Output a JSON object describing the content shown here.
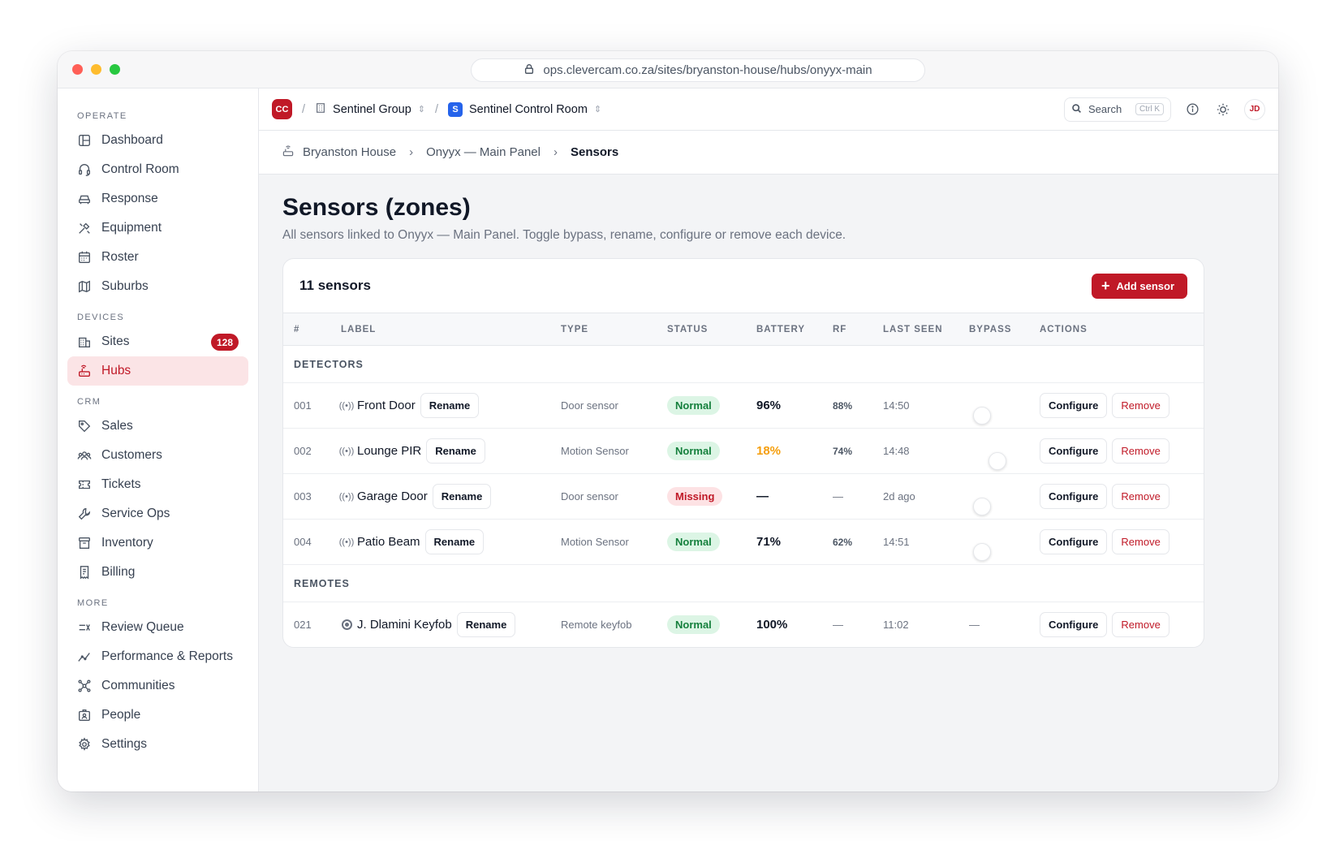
{
  "browser": {
    "url": "ops.clevercam.co.za/sites/bryanston-house/hubs/onyyx-main"
  },
  "sidebar": {
    "sections": [
      {
        "label": "OPERATE",
        "items": [
          {
            "label": "Dashboard",
            "icon": "layout-icon"
          },
          {
            "label": "Control Room",
            "icon": "headset-icon"
          },
          {
            "label": "Response",
            "icon": "car-icon"
          },
          {
            "label": "Equipment",
            "icon": "tools-icon"
          },
          {
            "label": "Roster",
            "icon": "calendar-icon"
          },
          {
            "label": "Suburbs",
            "icon": "map-icon"
          }
        ]
      },
      {
        "label": "DEVICES",
        "items": [
          {
            "label": "Sites",
            "icon": "building-icon",
            "badge": "128"
          },
          {
            "label": "Hubs",
            "icon": "router-icon",
            "active": true
          }
        ]
      },
      {
        "label": "CRM",
        "items": [
          {
            "label": "Sales",
            "icon": "tag-icon"
          },
          {
            "label": "Customers",
            "icon": "users-icon"
          },
          {
            "label": "Tickets",
            "icon": "ticket-icon"
          },
          {
            "label": "Service Ops",
            "icon": "wrench-icon"
          },
          {
            "label": "Inventory",
            "icon": "archive-icon"
          },
          {
            "label": "Billing",
            "icon": "receipt-icon"
          }
        ]
      },
      {
        "label": "MORE",
        "items": [
          {
            "label": "Review Queue",
            "icon": "queue-icon"
          },
          {
            "label": "Performance & Reports",
            "icon": "chart-icon"
          },
          {
            "label": "Communities",
            "icon": "network-icon"
          },
          {
            "label": "People",
            "icon": "id-badge-icon"
          },
          {
            "label": "Settings",
            "icon": "gear-icon"
          }
        ]
      }
    ]
  },
  "topbar": {
    "org_initials": "CC",
    "org_name": "Sentinel Group",
    "room_initial": "S",
    "room_name": "Sentinel Control Room",
    "search_label": "Search",
    "search_shortcut": "Ctrl K",
    "user_initials": "JD"
  },
  "breadcrumb": {
    "site": "Bryanston House",
    "hub": "Onyyx — Main Panel",
    "current": "Sensors"
  },
  "page": {
    "title": "Sensors (zones)",
    "subtitle": "All sensors linked to Onyyx — Main Panel. Toggle bypass, rename, configure or remove each device."
  },
  "card": {
    "count_label": "11 sensors",
    "add_label": "Add sensor",
    "columns": [
      "#",
      "LABEL",
      "TYPE",
      "STATUS",
      "BATTERY",
      "RF",
      "LAST SEEN",
      "BYPASS",
      "ACTIONS"
    ],
    "rename_label": "Rename",
    "configure_label": "Configure",
    "remove_label": "Remove",
    "groups": [
      {
        "name": "DETECTORS",
        "rows": [
          {
            "num": "001",
            "label": "Front Door",
            "type": "Door sensor",
            "status": "Normal",
            "battery": "96%",
            "rf": "88%",
            "last_seen": "14:50",
            "bypass": "toggle"
          },
          {
            "num": "002",
            "label": "Lounge PIR",
            "type": "Motion Sensor",
            "status": "Normal",
            "battery": "18%",
            "rf": "74%",
            "last_seen": "14:48",
            "bypass": "toggle-shift"
          },
          {
            "num": "003",
            "label": "Garage Door",
            "type": "Door sensor",
            "status": "Missing",
            "battery": "—",
            "rf": "—",
            "last_seen": "2d ago",
            "bypass": "toggle"
          },
          {
            "num": "004",
            "label": "Patio Beam",
            "type": "Motion Sensor",
            "status": "Normal",
            "battery": "71%",
            "rf": "62%",
            "last_seen": "14:51",
            "bypass": "toggle"
          }
        ]
      },
      {
        "name": "REMOTES",
        "rows": [
          {
            "num": "021",
            "label": "J. Dlamini Keyfob",
            "type": "Remote keyfob",
            "status": "Normal",
            "battery": "100%",
            "rf": "—",
            "last_seen": "11:02",
            "bypass": "—"
          }
        ]
      }
    ]
  },
  "colors": {
    "accent": "#c01927",
    "ok_bg": "#dcf5e5",
    "ok_text": "#15803d",
    "low_battery": "#f59e0b",
    "room_blue": "#2563eb"
  }
}
